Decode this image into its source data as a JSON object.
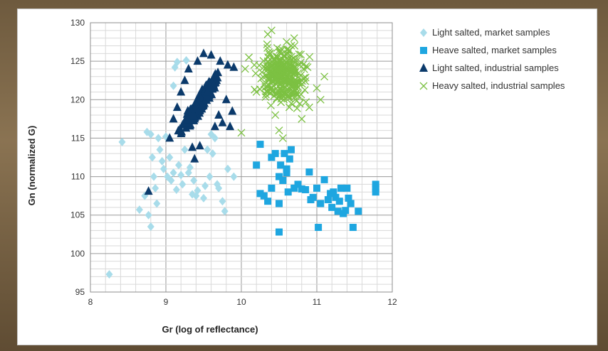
{
  "chart_data": {
    "type": "scatter",
    "xlabel": "Gr (log of reflectance)",
    "ylabel": "Gn (normalized G)",
    "xlim": [
      8,
      12
    ],
    "ylim": [
      95,
      130
    ],
    "x_ticks": [
      8,
      9,
      10,
      11,
      12
    ],
    "y_ticks": [
      95,
      100,
      105,
      110,
      115,
      120,
      125,
      130
    ],
    "minor_x_step": 0.2,
    "minor_y_step": 1,
    "grid": true,
    "legend_position": "right",
    "series": [
      {
        "name": "Light salted, market samples",
        "marker": "diamond",
        "color": "#a8dcea",
        "points": [
          [
            8.25,
            97.3
          ],
          [
            8.42,
            114.5
          ],
          [
            8.65,
            105.7
          ],
          [
            8.72,
            107.5
          ],
          [
            8.75,
            115.8
          ],
          [
            8.77,
            105.0
          ],
          [
            8.8,
            103.5
          ],
          [
            8.8,
            115.5
          ],
          [
            8.82,
            112.5
          ],
          [
            8.84,
            110.0
          ],
          [
            8.86,
            108.5
          ],
          [
            8.88,
            106.5
          ],
          [
            8.9,
            115.0
          ],
          [
            8.92,
            113.5
          ],
          [
            8.95,
            112.0
          ],
          [
            8.97,
            111.0
          ],
          [
            9.0,
            115.2
          ],
          [
            9.02,
            110.0
          ],
          [
            9.05,
            112.5
          ],
          [
            9.07,
            109.5
          ],
          [
            9.1,
            121.8
          ],
          [
            9.1,
            110.5
          ],
          [
            9.12,
            124.2
          ],
          [
            9.14,
            108.3
          ],
          [
            9.15,
            124.9
          ],
          [
            9.17,
            111.5
          ],
          [
            9.2,
            110.2
          ],
          [
            9.22,
            109.0
          ],
          [
            9.25,
            113.5
          ],
          [
            9.27,
            125.1
          ],
          [
            9.3,
            110.5
          ],
          [
            9.32,
            111.2
          ],
          [
            9.35,
            107.7
          ],
          [
            9.37,
            109.5
          ],
          [
            9.4,
            107.5
          ],
          [
            9.42,
            108.2
          ],
          [
            9.5,
            107.2
          ],
          [
            9.52,
            108.8
          ],
          [
            9.55,
            113.5
          ],
          [
            9.58,
            110.0
          ],
          [
            9.6,
            115.5
          ],
          [
            9.62,
            113.0
          ],
          [
            9.65,
            115.0
          ],
          [
            9.68,
            109.0
          ],
          [
            9.7,
            108.5
          ],
          [
            9.75,
            106.8
          ],
          [
            9.78,
            105.5
          ],
          [
            9.82,
            111.0
          ],
          [
            9.9,
            110.0
          ]
        ]
      },
      {
        "name": "Heave salted, market samples",
        "marker": "square",
        "color": "#1ea6e0",
        "points": [
          [
            10.2,
            111.5
          ],
          [
            10.25,
            107.8
          ],
          [
            10.25,
            114.2
          ],
          [
            10.3,
            107.5
          ],
          [
            10.35,
            106.8
          ],
          [
            10.4,
            108.5
          ],
          [
            10.4,
            112.5
          ],
          [
            10.45,
            113.0
          ],
          [
            10.5,
            106.5
          ],
          [
            10.5,
            102.8
          ],
          [
            10.5,
            110.0
          ],
          [
            10.52,
            111.5
          ],
          [
            10.55,
            109.5
          ],
          [
            10.57,
            113.0
          ],
          [
            10.6,
            111.0
          ],
          [
            10.6,
            110.5
          ],
          [
            10.62,
            108.0
          ],
          [
            10.64,
            112.3
          ],
          [
            10.66,
            113.5
          ],
          [
            10.7,
            108.5
          ],
          [
            10.75,
            109.0
          ],
          [
            10.8,
            108.4
          ],
          [
            10.85,
            108.3
          ],
          [
            10.9,
            110.6
          ],
          [
            10.92,
            107.0
          ],
          [
            10.95,
            107.3
          ],
          [
            11.0,
            108.5
          ],
          [
            11.02,
            103.4
          ],
          [
            11.05,
            106.5
          ],
          [
            11.1,
            109.6
          ],
          [
            11.15,
            107.0
          ],
          [
            11.18,
            107.8
          ],
          [
            11.2,
            106.0
          ],
          [
            11.22,
            108.0
          ],
          [
            11.25,
            107.3
          ],
          [
            11.28,
            105.5
          ],
          [
            11.3,
            106.8
          ],
          [
            11.32,
            108.5
          ],
          [
            11.35,
            105.2
          ],
          [
            11.38,
            105.6
          ],
          [
            11.4,
            108.5
          ],
          [
            11.42,
            107.2
          ],
          [
            11.45,
            106.5
          ],
          [
            11.48,
            103.4
          ],
          [
            11.55,
            105.5
          ],
          [
            11.78,
            108.0
          ],
          [
            11.78,
            109.0
          ],
          [
            11.78,
            108.5
          ]
        ]
      },
      {
        "name": "Light salted, industrial samples",
        "marker": "triangle",
        "color": "#0b3a6b",
        "cluster": {
          "x_range": [
            9.0,
            9.9
          ],
          "y_range": [
            113.0,
            126.0
          ],
          "count": 200
        },
        "points": [
          [
            8.77,
            108.1
          ],
          [
            9.05,
            115.0
          ],
          [
            9.1,
            117.5
          ],
          [
            9.15,
            119.0
          ],
          [
            9.2,
            121.0
          ],
          [
            9.25,
            122.5
          ],
          [
            9.3,
            124.0
          ],
          [
            9.35,
            113.8
          ],
          [
            9.38,
            112.3
          ],
          [
            9.42,
            125.0
          ],
          [
            9.45,
            114.0
          ],
          [
            9.5,
            126.0
          ],
          [
            9.55,
            121.0
          ],
          [
            9.6,
            125.8
          ],
          [
            9.65,
            116.5
          ],
          [
            9.7,
            118.0
          ],
          [
            9.72,
            125.0
          ],
          [
            9.75,
            117.0
          ],
          [
            9.8,
            120.0
          ],
          [
            9.82,
            124.5
          ],
          [
            9.85,
            116.5
          ],
          [
            9.88,
            118.5
          ],
          [
            9.9,
            124.2
          ]
        ]
      },
      {
        "name": "Heavy salted, industrial samples",
        "marker": "x",
        "color": "#7cc142",
        "cluster": {
          "x_range": [
            10.0,
            11.1
          ],
          "y_range": [
            114.5,
            129.5
          ],
          "count": 320
        },
        "points": [
          [
            10.0,
            115.7
          ],
          [
            10.05,
            124.0
          ],
          [
            10.1,
            125.5
          ],
          [
            10.2,
            121.0
          ],
          [
            10.35,
            128.5
          ],
          [
            10.4,
            129.0
          ],
          [
            10.45,
            118.0
          ],
          [
            10.5,
            116.0
          ],
          [
            10.55,
            115.0
          ],
          [
            10.6,
            127.5
          ],
          [
            10.7,
            128.0
          ],
          [
            10.8,
            117.5
          ],
          [
            10.9,
            119.0
          ],
          [
            11.0,
            121.5
          ],
          [
            11.05,
            120.0
          ],
          [
            11.1,
            123.0
          ]
        ]
      }
    ]
  }
}
